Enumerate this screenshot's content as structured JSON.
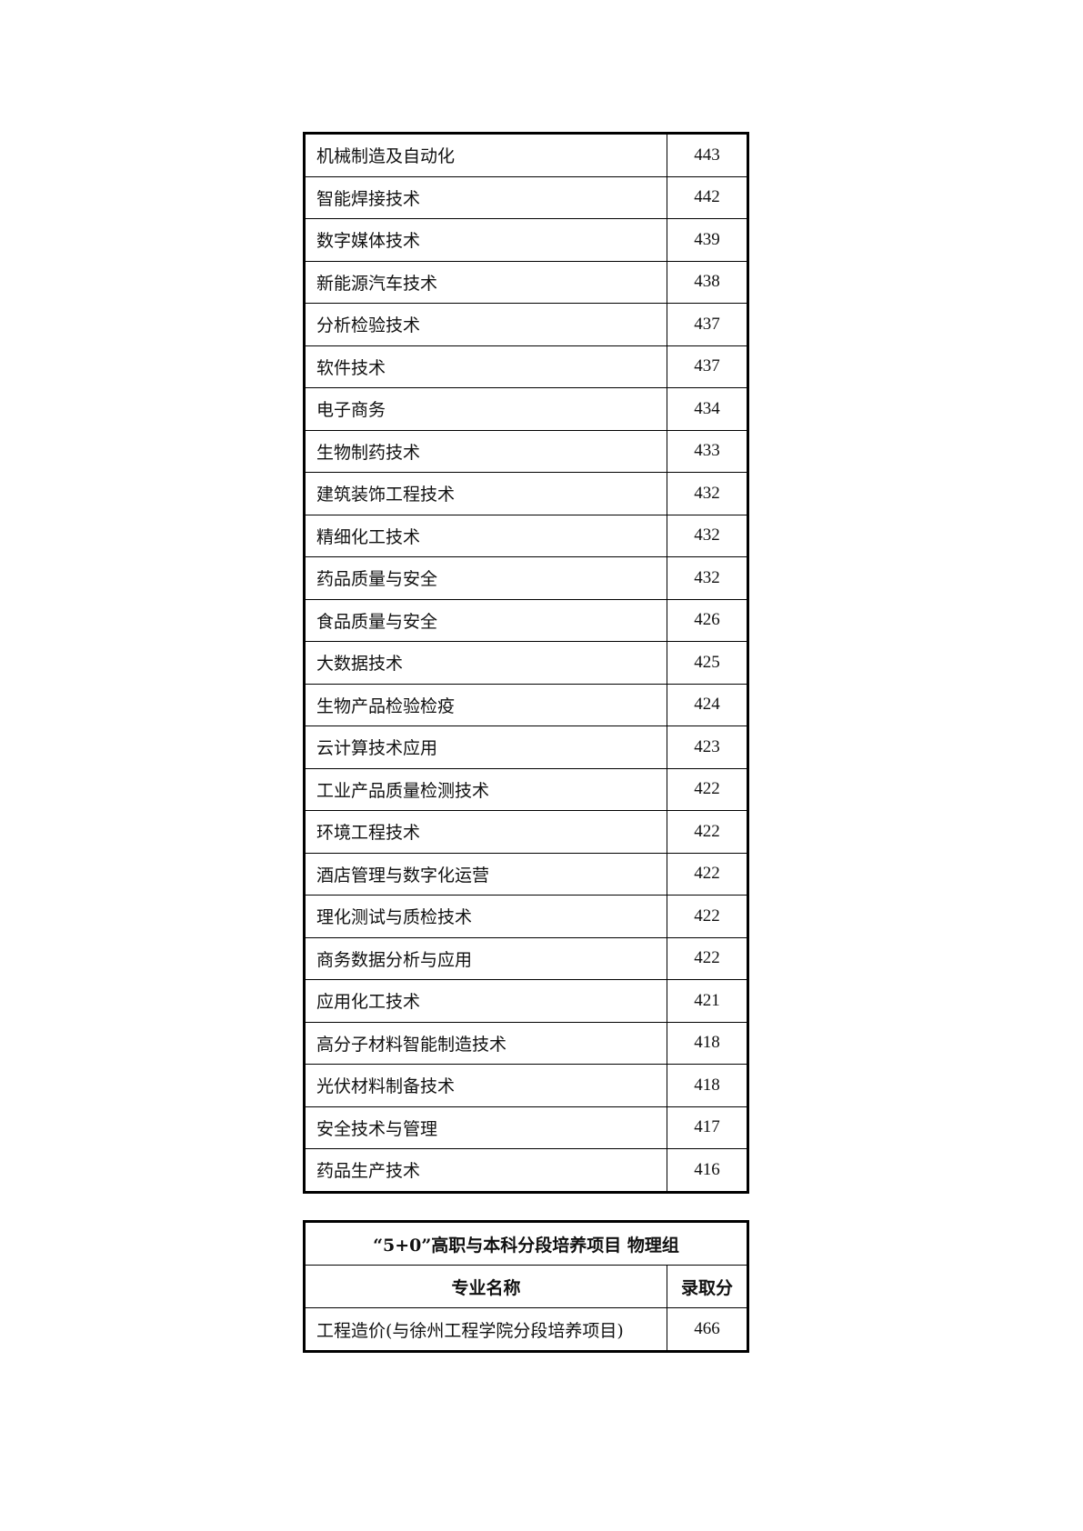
{
  "table1": {
    "rows": [
      {
        "name": "机械制造及自动化",
        "score": "443"
      },
      {
        "name": "智能焊接技术",
        "score": "442"
      },
      {
        "name": "数字媒体技术",
        "score": "439"
      },
      {
        "name": "新能源汽车技术",
        "score": "438"
      },
      {
        "name": "分析检验技术",
        "score": "437"
      },
      {
        "name": "软件技术",
        "score": "437"
      },
      {
        "name": "电子商务",
        "score": "434"
      },
      {
        "name": "生物制药技术",
        "score": "433"
      },
      {
        "name": "建筑装饰工程技术",
        "score": "432"
      },
      {
        "name": "精细化工技术",
        "score": "432"
      },
      {
        "name": "药品质量与安全",
        "score": "432"
      },
      {
        "name": "食品质量与安全",
        "score": "426"
      },
      {
        "name": "大数据技术",
        "score": "425"
      },
      {
        "name": "生物产品检验检疫",
        "score": "424"
      },
      {
        "name": "云计算技术应用",
        "score": "423"
      },
      {
        "name": "工业产品质量检测技术",
        "score": "422"
      },
      {
        "name": "环境工程技术",
        "score": "422"
      },
      {
        "name": "酒店管理与数字化运营",
        "score": "422"
      },
      {
        "name": "理化测试与质检技术",
        "score": "422"
      },
      {
        "name": "商务数据分析与应用",
        "score": "422"
      },
      {
        "name": "应用化工技术",
        "score": "421"
      },
      {
        "name": "高分子材料智能制造技术",
        "score": "418"
      },
      {
        "name": "光伏材料制备技术",
        "score": "418"
      },
      {
        "name": "安全技术与管理",
        "score": "417"
      },
      {
        "name": "药品生产技术",
        "score": "416"
      }
    ]
  },
  "table2": {
    "title": "“5+0”高职与本科分段培养项目  物理组",
    "headers": {
      "name": "专业名称",
      "score": "录取分"
    },
    "rows": [
      {
        "name": "工程造价(与徐州工程学院分段培养项目)",
        "score": "466"
      }
    ]
  }
}
